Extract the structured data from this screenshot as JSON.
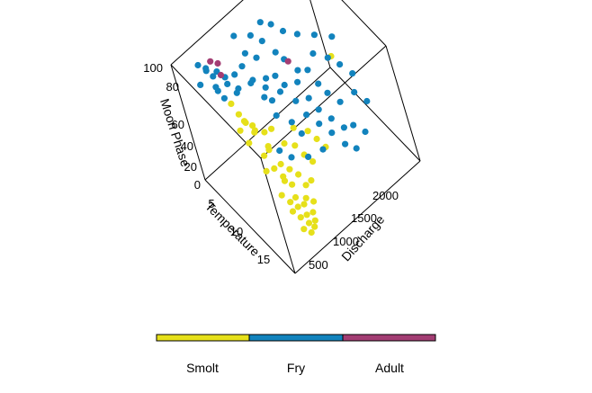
{
  "chart_data": {
    "type": "scatter",
    "projection": "3d",
    "title": "",
    "xlabel": "Temperature",
    "ylabel": "Discharge",
    "zlabel": "Moon Phase",
    "x_ticks": [
      "5",
      "10",
      "15"
    ],
    "y_ticks": [
      "500",
      "1000",
      "1500",
      "2000"
    ],
    "z_ticks": [
      "0",
      "20",
      "40",
      "60",
      "80",
      "100"
    ],
    "xlim": [
      0,
      20
    ],
    "ylim": [
      0,
      2300
    ],
    "zlim": [
      0,
      100
    ],
    "legend_position": "bottom",
    "grid": false,
    "colors": {
      "Smolt": "#e6e01a",
      "Fry": "#1283bd",
      "Adult": "#a33d73"
    },
    "series": [
      {
        "name": "Smolt",
        "color": "#e6e01a",
        "points": [
          {
            "x": 6,
            "y": 500,
            "z": 60
          },
          {
            "x": 6,
            "y": 550,
            "z": 52
          },
          {
            "x": 6,
            "y": 450,
            "z": 48
          },
          {
            "x": 7,
            "y": 520,
            "z": 56
          },
          {
            "x": 7,
            "y": 620,
            "z": 45
          },
          {
            "x": 7,
            "y": 480,
            "z": 40
          },
          {
            "x": 7,
            "y": 750,
            "z": 38
          },
          {
            "x": 8,
            "y": 560,
            "z": 50
          },
          {
            "x": 8,
            "y": 700,
            "z": 32
          },
          {
            "x": 8,
            "y": 820,
            "z": 42
          },
          {
            "x": 8,
            "y": 600,
            "z": 28
          },
          {
            "x": 9,
            "y": 650,
            "z": 35
          },
          {
            "x": 9,
            "y": 900,
            "z": 30
          },
          {
            "x": 9,
            "y": 520,
            "z": 22
          },
          {
            "x": 9,
            "y": 760,
            "z": 18
          },
          {
            "x": 10,
            "y": 600,
            "z": 25
          },
          {
            "x": 10,
            "y": 820,
            "z": 15
          },
          {
            "x": 10,
            "y": 1000,
            "z": 28
          },
          {
            "x": 10,
            "y": 700,
            "z": 10
          },
          {
            "x": 11,
            "y": 650,
            "z": 20
          },
          {
            "x": 11,
            "y": 880,
            "z": 12
          },
          {
            "x": 11,
            "y": 550,
            "z": 8
          },
          {
            "x": 11,
            "y": 1050,
            "z": 22
          },
          {
            "x": 12,
            "y": 700,
            "z": 15
          },
          {
            "x": 12,
            "y": 900,
            "z": 6
          },
          {
            "x": 12,
            "y": 600,
            "z": 4
          },
          {
            "x": 12,
            "y": 1100,
            "z": 18
          },
          {
            "x": 13,
            "y": 650,
            "z": 10
          },
          {
            "x": 13,
            "y": 800,
            "z": 3
          },
          {
            "x": 13,
            "y": 950,
            "z": 12
          },
          {
            "x": 13,
            "y": 550,
            "z": 2
          },
          {
            "x": 14,
            "y": 700,
            "z": 6
          },
          {
            "x": 14,
            "y": 850,
            "z": 2
          },
          {
            "x": 14,
            "y": 600,
            "z": 8
          },
          {
            "x": 15,
            "y": 650,
            "z": 3
          },
          {
            "x": 15,
            "y": 750,
            "z": 1
          },
          {
            "x": 15,
            "y": 550,
            "z": 5
          },
          {
            "x": 16,
            "y": 600,
            "z": 2
          },
          {
            "x": 16,
            "y": 700,
            "z": 0
          },
          {
            "x": 16,
            "y": 500,
            "z": 1
          },
          {
            "x": 17,
            "y": 550,
            "z": 0
          },
          {
            "x": 17,
            "y": 620,
            "z": 2
          },
          {
            "x": 5,
            "y": 480,
            "z": 66
          },
          {
            "x": 6,
            "y": 650,
            "z": 44
          },
          {
            "x": 9,
            "y": 1100,
            "z": 35
          },
          {
            "x": 10,
            "y": 1250,
            "z": 30
          },
          {
            "x": 11,
            "y": 1300,
            "z": 25
          },
          {
            "x": 12,
            "y": 1350,
            "z": 20
          },
          {
            "x": 8,
            "y": 2000,
            "z": 55
          }
        ]
      },
      {
        "name": "Fry",
        "color": "#1283bd",
        "points": [
          {
            "x": 2,
            "y": 300,
            "z": 95
          },
          {
            "x": 2,
            "y": 400,
            "z": 88
          },
          {
            "x": 3,
            "y": 350,
            "z": 92
          },
          {
            "x": 3,
            "y": 500,
            "z": 85
          },
          {
            "x": 2,
            "y": 250,
            "z": 80
          },
          {
            "x": 3,
            "y": 420,
            "z": 75
          },
          {
            "x": 4,
            "y": 380,
            "z": 90
          },
          {
            "x": 4,
            "y": 550,
            "z": 82
          },
          {
            "x": 3,
            "y": 600,
            "z": 70
          },
          {
            "x": 4,
            "y": 700,
            "z": 78
          },
          {
            "x": 2,
            "y": 480,
            "z": 65
          },
          {
            "x": 4,
            "y": 450,
            "z": 68
          },
          {
            "x": 5,
            "y": 650,
            "z": 72
          },
          {
            "x": 5,
            "y": 800,
            "z": 85
          },
          {
            "x": 5,
            "y": 900,
            "z": 92
          },
          {
            "x": 6,
            "y": 1000,
            "z": 88
          },
          {
            "x": 4,
            "y": 1100,
            "z": 95
          },
          {
            "x": 5,
            "y": 1200,
            "z": 90
          },
          {
            "x": 6,
            "y": 850,
            "z": 75
          },
          {
            "x": 6,
            "y": 1050,
            "z": 68
          },
          {
            "x": 7,
            "y": 900,
            "z": 62
          },
          {
            "x": 7,
            "y": 1150,
            "z": 70
          },
          {
            "x": 6,
            "y": 1300,
            "z": 80
          },
          {
            "x": 7,
            "y": 1350,
            "z": 76
          },
          {
            "x": 8,
            "y": 1200,
            "z": 64
          },
          {
            "x": 8,
            "y": 1400,
            "z": 58
          },
          {
            "x": 7,
            "y": 1000,
            "z": 55
          },
          {
            "x": 8,
            "y": 950,
            "z": 48
          },
          {
            "x": 9,
            "y": 1250,
            "z": 52
          },
          {
            "x": 9,
            "y": 1450,
            "z": 46
          },
          {
            "x": 8,
            "y": 1600,
            "z": 60
          },
          {
            "x": 9,
            "y": 1100,
            "z": 40
          },
          {
            "x": 10,
            "y": 1300,
            "z": 42
          },
          {
            "x": 10,
            "y": 1500,
            "z": 38
          },
          {
            "x": 9,
            "y": 1650,
            "z": 50
          },
          {
            "x": 10,
            "y": 1150,
            "z": 32
          },
          {
            "x": 11,
            "y": 1400,
            "z": 34
          },
          {
            "x": 11,
            "y": 1600,
            "z": 30
          },
          {
            "x": 10,
            "y": 1700,
            "z": 44
          },
          {
            "x": 12,
            "y": 1500,
            "z": 26
          },
          {
            "x": 11,
            "y": 1800,
            "z": 36
          },
          {
            "x": 12,
            "y": 1700,
            "z": 22
          },
          {
            "x": 13,
            "y": 1600,
            "z": 16
          },
          {
            "x": 12,
            "y": 1300,
            "z": 20
          },
          {
            "x": 13,
            "y": 1800,
            "z": 24
          },
          {
            "x": 14,
            "y": 1700,
            "z": 12
          },
          {
            "x": 14,
            "y": 1900,
            "z": 18
          },
          {
            "x": 3,
            "y": 700,
            "z": 58
          },
          {
            "x": 4,
            "y": 900,
            "z": 62
          },
          {
            "x": 5,
            "y": 1050,
            "z": 56
          },
          {
            "x": 6,
            "y": 1200,
            "z": 50
          },
          {
            "x": 7,
            "y": 1500,
            "z": 60
          },
          {
            "x": 8,
            "y": 1750,
            "z": 68
          },
          {
            "x": 9,
            "y": 1900,
            "z": 62
          },
          {
            "x": 6,
            "y": 1500,
            "z": 90
          },
          {
            "x": 7,
            "y": 1650,
            "z": 85
          },
          {
            "x": 5,
            "y": 1400,
            "z": 96
          },
          {
            "x": 8,
            "y": 1850,
            "z": 80
          },
          {
            "x": 9,
            "y": 2050,
            "z": 74
          },
          {
            "x": 10,
            "y": 2000,
            "z": 56
          },
          {
            "x": 11,
            "y": 2100,
            "z": 48
          },
          {
            "x": 12,
            "y": 2000,
            "z": 40
          },
          {
            "x": 13,
            "y": 2100,
            "z": 32
          },
          {
            "x": 4,
            "y": 1300,
            "z": 98
          },
          {
            "x": 3,
            "y": 900,
            "z": 99
          },
          {
            "x": 10,
            "y": 900,
            "z": 22
          },
          {
            "x": 11,
            "y": 1100,
            "z": 18
          },
          {
            "x": 9,
            "y": 800,
            "z": 28
          }
        ]
      },
      {
        "name": "Adult",
        "color": "#a33d73",
        "points": [
          {
            "x": 3,
            "y": 450,
            "z": 96
          },
          {
            "x": 3,
            "y": 550,
            "z": 90
          },
          {
            "x": 4,
            "y": 500,
            "z": 86
          },
          {
            "x": 7,
            "y": 1400,
            "z": 72
          }
        ]
      }
    ]
  },
  "legend": {
    "items": [
      {
        "label": "Smolt",
        "color": "#e6e01a"
      },
      {
        "label": "Fry",
        "color": "#1283bd"
      },
      {
        "label": "Adult",
        "color": "#a33d73"
      }
    ]
  }
}
